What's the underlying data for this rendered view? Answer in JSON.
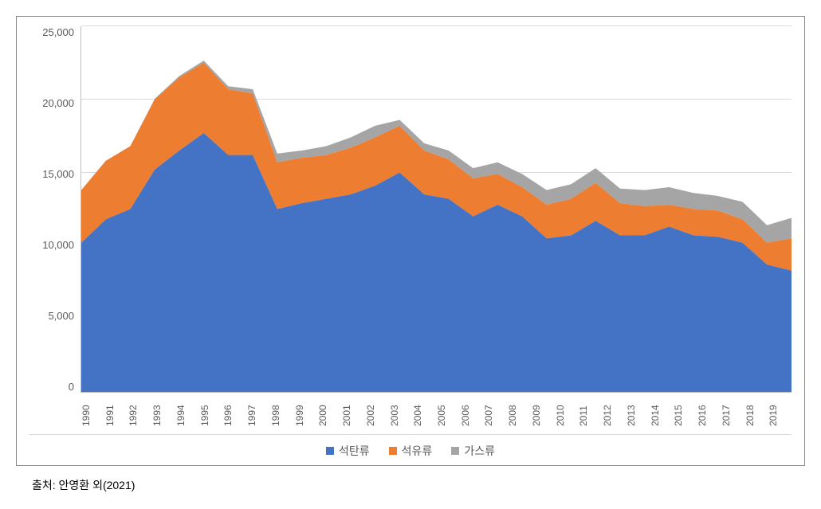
{
  "chart": {
    "type": "area",
    "background_color": "#ffffff",
    "border_color": "#888888",
    "grid_color": "#d9d9d9",
    "axis_color": "#bfbfbf",
    "text_color": "#595959",
    "label_fontsize": 13,
    "xlabel_fontsize": 12,
    "legend_fontsize": 14,
    "ylim": [
      0,
      25000
    ],
    "ytick_step": 5000,
    "yticks": [
      "0",
      "5,000",
      "10,000",
      "15,000",
      "20,000",
      "25,000"
    ],
    "categories": [
      "1990",
      "1991",
      "1992",
      "1993",
      "1994",
      "1995",
      "1996",
      "1997",
      "1998",
      "1999",
      "2000",
      "2001",
      "2002",
      "2003",
      "2004",
      "2005",
      "2006",
      "2007",
      "2008",
      "2009",
      "2010",
      "2011",
      "2012",
      "2013",
      "2014",
      "2015",
      "2016",
      "2017",
      "2018",
      "2019"
    ],
    "series": [
      {
        "name": "석탄류",
        "color": "#4472c4",
        "values": [
          10200,
          11800,
          12500,
          15200,
          16500,
          17700,
          16200,
          16200,
          12500,
          12900,
          13200,
          13500,
          14100,
          15000,
          13500,
          13200,
          12000,
          12800,
          12000,
          10500,
          10700,
          11700,
          10700,
          10700,
          11300,
          10700,
          10600,
          10200,
          8700,
          8300
        ]
      },
      {
        "name": "석유류",
        "color": "#ed7d31",
        "values": [
          3600,
          4000,
          4300,
          4800,
          5000,
          4800,
          4500,
          4200,
          3200,
          3100,
          3000,
          3200,
          3300,
          3200,
          3000,
          2700,
          2600,
          2100,
          2000,
          2300,
          2500,
          2600,
          2200,
          2000,
          1500,
          1800,
          1800,
          1600,
          1500,
          2200
        ]
      },
      {
        "name": "가스류",
        "color": "#a5a5a5",
        "values": [
          0,
          0,
          0,
          50,
          100,
          150,
          200,
          300,
          600,
          500,
          600,
          700,
          800,
          400,
          500,
          600,
          700,
          800,
          900,
          1000,
          1000,
          1000,
          1000,
          1100,
          1200,
          1100,
          1000,
          1200,
          1200,
          1400
        ]
      }
    ]
  },
  "legend_labels": [
    "석탄류",
    "석유류",
    "가스류"
  ],
  "source": "출처: 안영환 외(2021)"
}
